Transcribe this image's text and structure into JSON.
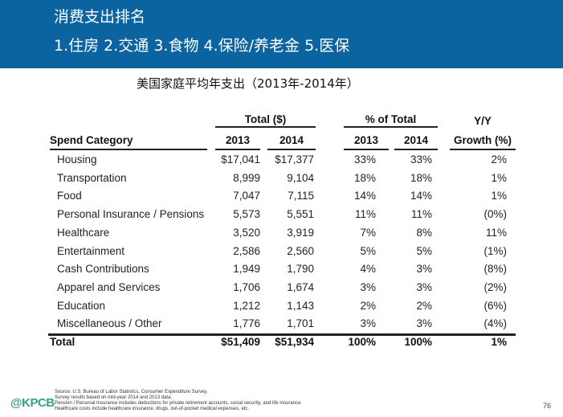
{
  "header": {
    "title": "消费支出排名",
    "subtitle": "1.住房 2.交通 3.食物 4.保险/养老金 5.医保"
  },
  "caption": "美国家庭平均年支出（2013年-2014年）",
  "table": {
    "group_headers": {
      "total": "Total ($)",
      "pct": "% of Total",
      "yy": "Y/Y"
    },
    "columns": [
      "Spend Category",
      "2013",
      "2014",
      "2013",
      "2014",
      "Growth (%)"
    ],
    "rows": [
      [
        "Housing",
        "$17,041",
        "$17,377",
        "33%",
        "33%",
        "2%"
      ],
      [
        "Transportation",
        "8,999",
        "9,104",
        "18%",
        "18%",
        "1%"
      ],
      [
        "Food",
        "7,047",
        "7,115",
        "14%",
        "14%",
        "1%"
      ],
      [
        "Personal Insurance / Pensions",
        "5,573",
        "5,551",
        "11%",
        "11%",
        "(0%)"
      ],
      [
        "Healthcare",
        "3,520",
        "3,919",
        "7%",
        "8%",
        "11%"
      ],
      [
        "Entertainment",
        "2,586",
        "2,560",
        "5%",
        "5%",
        "(1%)"
      ],
      [
        "Cash Contributions",
        "1,949",
        "1,790",
        "4%",
        "3%",
        "(8%)"
      ],
      [
        "Apparel and Services",
        "1,706",
        "1,674",
        "3%",
        "3%",
        "(2%)"
      ],
      [
        "Education",
        "1,212",
        "1,143",
        "2%",
        "2%",
        "(6%)"
      ],
      [
        "Miscellaneous / Other",
        "1,776",
        "1,701",
        "3%",
        "3%",
        "(4%)"
      ]
    ],
    "total": [
      "Total",
      "$51,409",
      "$51,934",
      "100%",
      "100%",
      "1%"
    ]
  },
  "footer": {
    "logo": "@KPCB",
    "notes": [
      "Source: U.S. Bureau of Labor Statistics, Consumer Expenditure Survey.",
      "Survey results based on mid-year 2014 and 2013 data.",
      "Pension / Personal Insurance includes deductions for private retirement accounts, social security, and life insurance.",
      "Healthcare costs include healthcare insurance, drugs, out-of-pocket medical expenses, etc."
    ],
    "page": "76"
  },
  "colors": {
    "band": "#0b64a0",
    "logo": "#3a9e86"
  }
}
